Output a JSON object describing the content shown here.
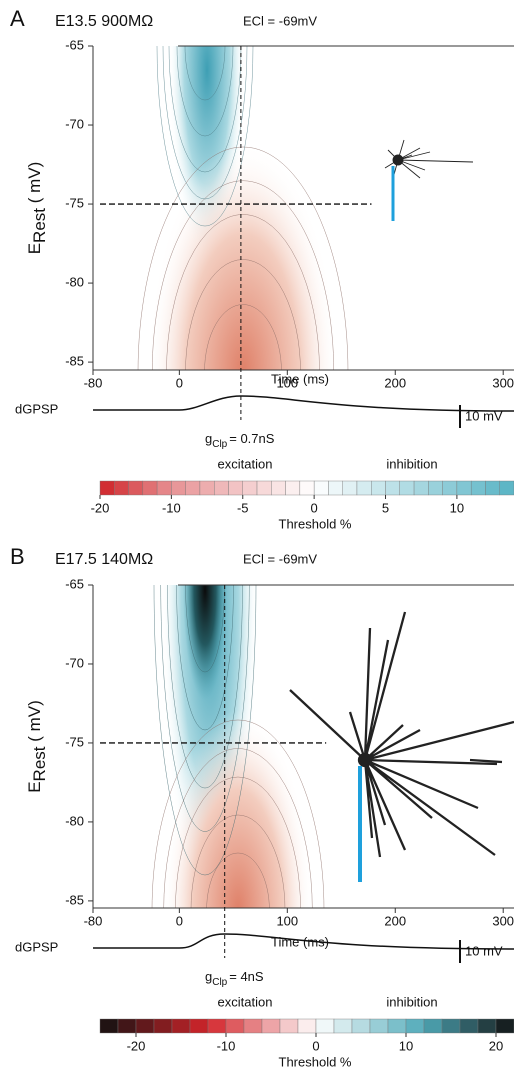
{
  "chart_data": [
    {
      "type": "contour",
      "panel": "A",
      "title": "E13.5  900MΩ",
      "subtitle": "ECl = -69mV",
      "ylabel": {
        "symbol": "E",
        "subscript": "Rest",
        "unit": " ( mV)"
      },
      "xlabel": "Time (ms)",
      "xlim": [
        -80,
        310
      ],
      "xticks": [
        -80,
        0,
        100,
        200,
        300
      ],
      "ylim": [
        -85.5,
        -65
      ],
      "yticks": [
        -65,
        -70,
        -75,
        -80,
        -85
      ],
      "crosshair": {
        "x": 57,
        "y": -75,
        "x_end": 178
      },
      "scalebar": "10 mV",
      "trace_label": "dGPSP",
      "conductance": {
        "symbol": "g",
        "subscript": "Clp",
        "text": "= 0.7nS"
      },
      "left_label": "excitation",
      "right_label": "inhibition",
      "colorbar": {
        "label": "Threshold %",
        "levels": [
          -20,
          -18,
          -16,
          -14,
          -12,
          -10,
          -9,
          -8,
          -7,
          -6,
          -5,
          -4,
          -3,
          -2,
          -1,
          0,
          1,
          2,
          3,
          4,
          5,
          6,
          7,
          8,
          9,
          10,
          11,
          12,
          13,
          14
        ],
        "ticks": [
          -20,
          -10,
          -5,
          0,
          5,
          10
        ],
        "color_stops": [
          {
            "value": -20,
            "color": "#cf2328"
          },
          {
            "value": 0,
            "color": "#ffffff"
          },
          {
            "value": 14,
            "color": "#57b3c4"
          }
        ]
      }
    },
    {
      "type": "contour",
      "panel": "B",
      "title": "E17.5  140MΩ",
      "subtitle": "ECl = -69mV",
      "ylabel": {
        "symbol": "E",
        "subscript": "Rest",
        "unit": " ( mV)"
      },
      "xlabel": "Time (ms)",
      "xlim": [
        -80,
        310
      ],
      "xticks": [
        -80,
        0,
        100,
        200,
        300
      ],
      "ylim": [
        -85.45,
        -65
      ],
      "yticks": [
        -65,
        -70,
        -75,
        -80,
        -85
      ],
      "crosshair": {
        "x": 42,
        "y": -75,
        "x_end": 136
      },
      "scalebar": "10 mV",
      "trace_label": "dGPSP",
      "conductance": {
        "symbol": "g",
        "subscript": "Clp",
        "text": "= 4nS"
      },
      "left_label": "excitation",
      "right_label": "inhibition",
      "colorbar": {
        "label": "Threshold %",
        "levels": [
          -24,
          -22,
          -20,
          -18,
          -16,
          -14,
          -12,
          -10,
          -8,
          -6,
          -4,
          -2,
          0,
          2,
          4,
          6,
          8,
          10,
          12,
          14,
          16,
          18,
          20,
          22
        ],
        "ticks": [
          -20,
          -10,
          0,
          10,
          20
        ],
        "color_stops": [
          {
            "value": -24,
            "color": "#111111"
          },
          {
            "value": -12,
            "color": "#d3252b"
          },
          {
            "value": 0,
            "color": "#ffffff"
          },
          {
            "value": 12,
            "color": "#4fa9b8"
          },
          {
            "value": 22,
            "color": "#111111"
          }
        ]
      }
    }
  ]
}
